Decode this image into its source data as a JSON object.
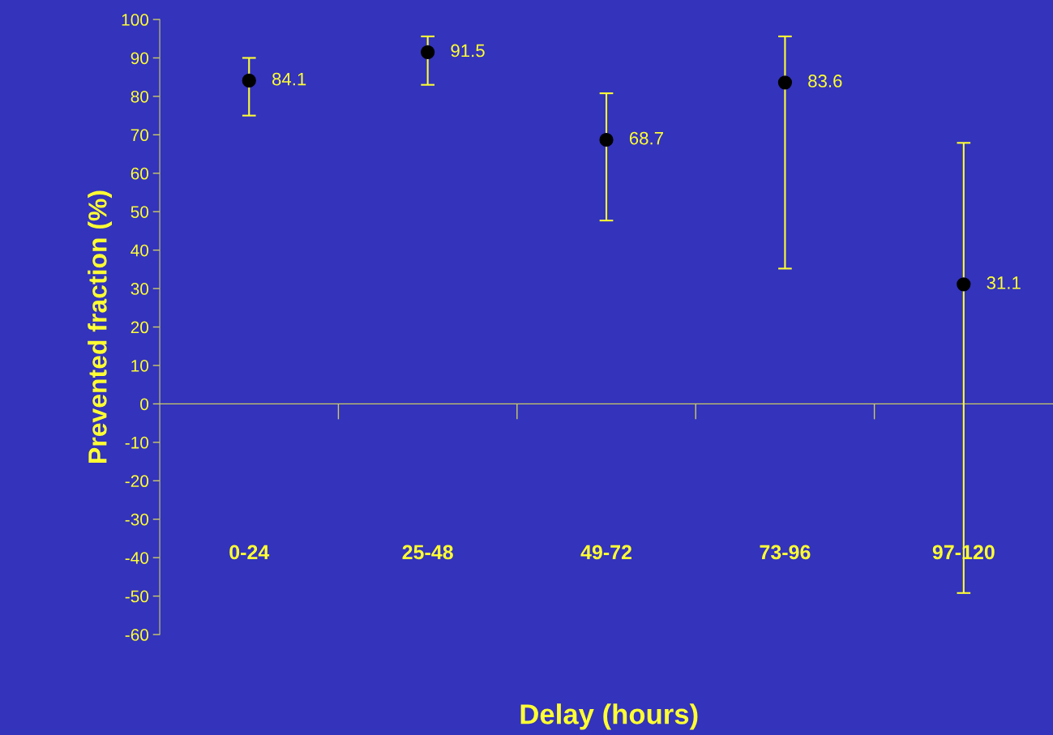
{
  "chart_data": {
    "type": "scatter",
    "xlabel": "Delay (hours)",
    "ylabel": "Prevented fraction (%)",
    "categories": [
      "0-24",
      "25-48",
      "49-72",
      "73-96",
      "97-120"
    ],
    "series": [
      {
        "color": "#000000",
        "values": [
          84.1,
          91.5,
          68.7,
          83.6,
          31.1
        ],
        "errors": [
          [
            75,
            90
          ],
          [
            83,
            95.6
          ],
          [
            47.7,
            80.8
          ],
          [
            35.2,
            95.6
          ],
          [
            -49.2,
            67.9
          ]
        ]
      }
    ],
    "ref_lines": [
      {
        "axis": "y",
        "value": 0,
        "color": "#cccc66"
      }
    ],
    "data_labels": true,
    "marker": "circle",
    "grid": false,
    "legend": false,
    "ylim": [
      -60,
      100
    ],
    "yticks": [
      -60,
      -50,
      -40,
      -30,
      -20,
      -10,
      0,
      10,
      20,
      30,
      40,
      50,
      60,
      70,
      80,
      90,
      100
    ]
  }
}
